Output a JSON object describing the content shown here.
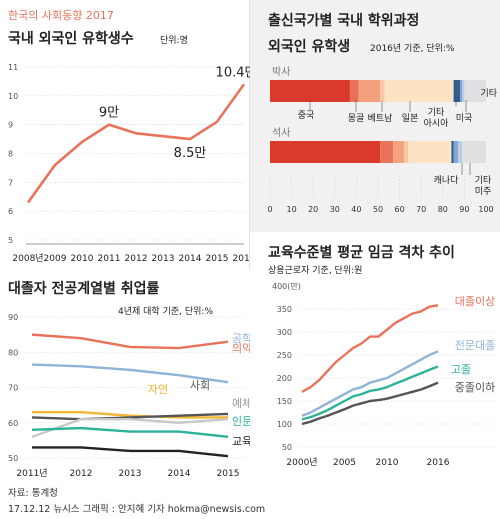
{
  "left_top": {
    "super_title": "한국의 사회동향 2017",
    "title": "국내 외국인 유학생수",
    "unit": "단위:명"
  },
  "right_top": {
    "title1": "출신국가별 국내 학위과정",
    "title2": "외국인 유학생",
    "subtitle": "2016년 기준, 단위:%"
  },
  "left_bottom": {
    "title": "대졸자 전공계열별 취업률",
    "subtitle": "4년제 대학 기준, 단위:%"
  },
  "right_bottom": {
    "title": "교육수준별 평균 임금 격차 추이",
    "subtitle": "상용근로자 기준, 단위:원",
    "y_unit": "400(만)"
  },
  "footer": {
    "source": "자료: 통계청",
    "credit": "17.12.12 뉴시스 그래픽 : 안지혜 기자 hokma@newsis.com"
  },
  "colors": {
    "accent": "#e8735a",
    "blue": "#8fb3d9",
    "yellow": "#f2b632",
    "green": "#2bb39a",
    "gray": "#c9c9c9",
    "dark": "#222222",
    "darkgray": "#555555",
    "china": "#d93a2b"
  },
  "chart_data": [
    {
      "id": "students",
      "type": "line",
      "x": [
        "2008년",
        "2009",
        "2010",
        "2011",
        "2012",
        "2013",
        "2014",
        "2015",
        "2016"
      ],
      "series": [
        {
          "values": [
            6.3,
            7.6,
            8.4,
            9.0,
            8.7,
            8.6,
            8.5,
            9.1,
            10.4
          ]
        }
      ],
      "annotations": [
        {
          "index": 3,
          "label": "9만"
        },
        {
          "index": 6,
          "label": "8.5만"
        },
        {
          "index": 8,
          "label": "10.4만"
        }
      ],
      "ylim": [
        5,
        11
      ],
      "yticks": [
        "5",
        "6",
        "7",
        "8",
        "9",
        "10",
        "11"
      ],
      "grid": true
    },
    {
      "id": "origin",
      "type": "bar",
      "orientation": "horizontal-stacked",
      "rows": [
        {
          "label": "박사",
          "segments": [
            {
              "name": "중국",
              "value": 37,
              "color": "#d93a2b"
            },
            {
              "name": "몽골",
              "value": 4,
              "color": "#e8735a"
            },
            {
              "name": "베트남",
              "value": 10,
              "color": "#f3a27d"
            },
            {
              "name": "일본",
              "value": 2,
              "color": "#f8c7a6"
            },
            {
              "name": "기타 아시아",
              "value": 32,
              "color": "#fce3c4"
            },
            {
              "name": "미국",
              "value": 3,
              "color": "#2f5d8c"
            },
            {
              "name": "캐나다",
              "value": 1,
              "color": "#7fa6d1"
            },
            {
              "name": "기타 미주",
              "value": 1,
              "color": "#b7cde6"
            },
            {
              "name": "기타",
              "value": 10,
              "color": "#e0e0e0"
            }
          ]
        },
        {
          "label": "석사",
          "segments": [
            {
              "name": "중국",
              "value": 51,
              "color": "#d93a2b"
            },
            {
              "name": "몽골",
              "value": 6,
              "color": "#e8735a"
            },
            {
              "name": "베트남",
              "value": 5,
              "color": "#f3a27d"
            },
            {
              "name": "일본",
              "value": 2,
              "color": "#f8c7a6"
            },
            {
              "name": "기타 아시아",
              "value": 20,
              "color": "#fce3c4"
            },
            {
              "name": "미국",
              "value": 1,
              "color": "#2f5d8c"
            },
            {
              "name": "캐나다",
              "value": 2,
              "color": "#7fa6d1"
            },
            {
              "name": "기타 미주",
              "value": 2,
              "color": "#b7cde6"
            },
            {
              "name": "기타",
              "value": 11,
              "color": "#e0e0e0"
            }
          ]
        }
      ],
      "xticks": [
        "0",
        "10",
        "20",
        "30",
        "40",
        "50",
        "60",
        "70",
        "80",
        "90",
        "100"
      ],
      "xlim": [
        0,
        100
      ]
    },
    {
      "id": "employment",
      "type": "line",
      "x": [
        "2011년",
        "2012",
        "2013",
        "2014",
        "2015"
      ],
      "series": [
        {
          "name": "의약",
          "values": [
            85.0,
            84.0,
            81.5,
            81.2,
            83.0
          ],
          "color": "#e8735a"
        },
        {
          "name": "공학",
          "values": [
            76.5,
            76.0,
            75.0,
            73.5,
            71.5
          ],
          "color": "#8fb3d9"
        },
        {
          "name": "자연",
          "values": [
            63.0,
            63.0,
            62.0,
            61.5,
            61.5
          ],
          "color": "#f2b632"
        },
        {
          "name": "사회",
          "values": [
            61.5,
            61.0,
            61.5,
            62.0,
            62.5
          ],
          "color": "#555555"
        },
        {
          "name": "예체능",
          "values": [
            56.0,
            61.0,
            61.0,
            60.0,
            61.0
          ],
          "color": "#c9c9c9"
        },
        {
          "name": "인문",
          "values": [
            58.0,
            58.5,
            57.5,
            57.5,
            56.0
          ],
          "color": "#2bb39a"
        },
        {
          "name": "교육",
          "values": [
            53.0,
            53.0,
            52.0,
            52.0,
            50.5
          ],
          "color": "#222222"
        }
      ],
      "ylim": [
        50,
        90
      ],
      "yticks": [
        "50",
        "60",
        "70",
        "80",
        "90"
      ],
      "grid": true
    },
    {
      "id": "wages",
      "type": "line",
      "x": [
        "2000",
        "2001",
        "2002",
        "2003",
        "2004",
        "2005",
        "2006",
        "2007",
        "2008",
        "2009",
        "2010",
        "2011",
        "2012",
        "2013",
        "2014",
        "2015",
        "2016"
      ],
      "xticks": [
        "2000년",
        "2005",
        "2010",
        "2016"
      ],
      "series": [
        {
          "name": "대졸이상",
          "values": [
            170,
            180,
            195,
            215,
            235,
            250,
            265,
            275,
            290,
            290,
            305,
            320,
            330,
            340,
            345,
            355,
            358
          ],
          "color": "#e8735a"
        },
        {
          "name": "전문대졸",
          "values": [
            118,
            125,
            135,
            145,
            155,
            165,
            175,
            180,
            190,
            195,
            200,
            210,
            220,
            230,
            240,
            250,
            258
          ],
          "color": "#8fb3d9"
        },
        {
          "name": "고졸",
          "values": [
            110,
            115,
            122,
            130,
            140,
            150,
            160,
            165,
            172,
            175,
            180,
            188,
            195,
            203,
            210,
            218,
            225
          ],
          "color": "#2bb39a"
        },
        {
          "name": "중졸이하",
          "values": [
            100,
            105,
            112,
            118,
            125,
            132,
            140,
            145,
            150,
            152,
            155,
            160,
            165,
            170,
            175,
            182,
            190
          ],
          "color": "#555555"
        }
      ],
      "ylim": [
        50,
        400
      ],
      "yticks": [
        "50",
        "100",
        "150",
        "200",
        "250",
        "300",
        "350"
      ],
      "grid": true
    }
  ]
}
